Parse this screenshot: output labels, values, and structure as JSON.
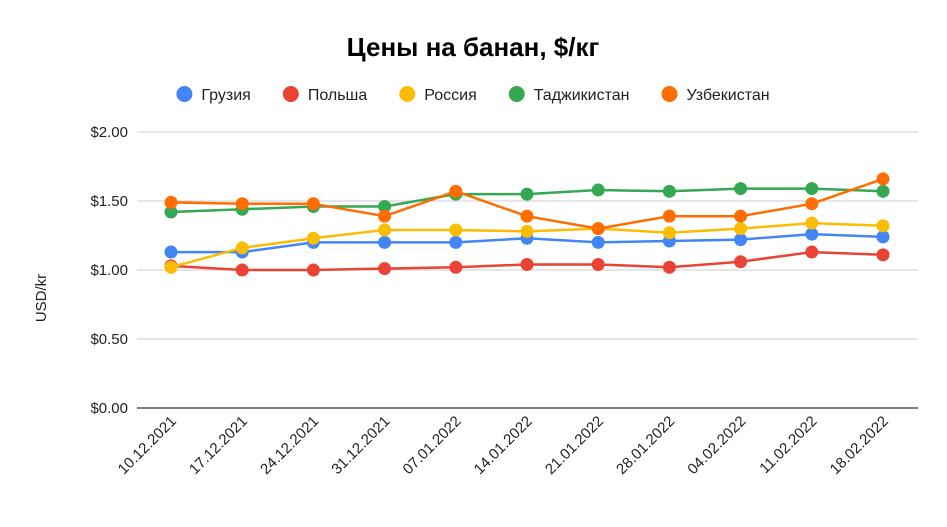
{
  "chart_data": {
    "type": "line",
    "title": "Цены на банан, $/кг",
    "xlabel": "",
    "ylabel": "USD/kr",
    "ylim": [
      0,
      2
    ],
    "yticks": [
      0,
      0.5,
      1,
      1.5,
      2
    ],
    "ytick_labels": [
      "$0.00",
      "$0.50",
      "$1.00",
      "$1.50",
      "$2.00"
    ],
    "grid": true,
    "legend_position": "top",
    "categories": [
      "10.12.2021",
      "17.12.2021",
      "24.12.2021",
      "31.12.2021",
      "07.01.2022",
      "14.01.2022",
      "21.01.2022",
      "28.01.2022",
      "04.02.2022",
      "11.02.2022",
      "18.02.2022"
    ],
    "series": [
      {
        "name": "Грузия",
        "color": "#4285F4",
        "values": [
          1.13,
          1.13,
          1.2,
          1.2,
          1.2,
          1.23,
          1.2,
          1.21,
          1.22,
          1.26,
          1.24
        ]
      },
      {
        "name": "Польша",
        "color": "#EA4335",
        "values": [
          1.03,
          1.0,
          1.0,
          1.01,
          1.02,
          1.04,
          1.04,
          1.02,
          1.06,
          1.13,
          1.11
        ]
      },
      {
        "name": "Россия",
        "color": "#FBBC04",
        "values": [
          1.02,
          1.16,
          1.23,
          1.29,
          1.29,
          1.28,
          1.3,
          1.27,
          1.3,
          1.34,
          1.32
        ]
      },
      {
        "name": "Таджикистан",
        "color": "#34A853",
        "values": [
          1.42,
          1.44,
          1.46,
          1.46,
          1.55,
          1.55,
          1.58,
          1.57,
          1.59,
          1.59,
          1.57
        ]
      },
      {
        "name": "Узбекистан",
        "color": "#FF6D01",
        "values": [
          1.49,
          1.48,
          1.48,
          1.39,
          1.57,
          1.39,
          1.3,
          1.39,
          1.39,
          1.48,
          1.66
        ]
      }
    ]
  }
}
